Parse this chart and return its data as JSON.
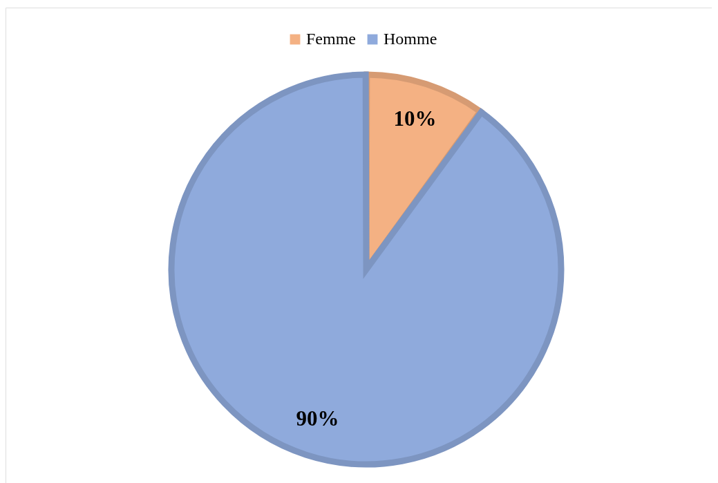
{
  "chart_data": {
    "type": "pie",
    "categories": [
      "Femme",
      "Homme"
    ],
    "values": [
      10,
      90
    ],
    "colors": [
      "#f4b183",
      "#8faadc"
    ],
    "value_labels": [
      "10%",
      "90%"
    ],
    "legend": "top"
  }
}
